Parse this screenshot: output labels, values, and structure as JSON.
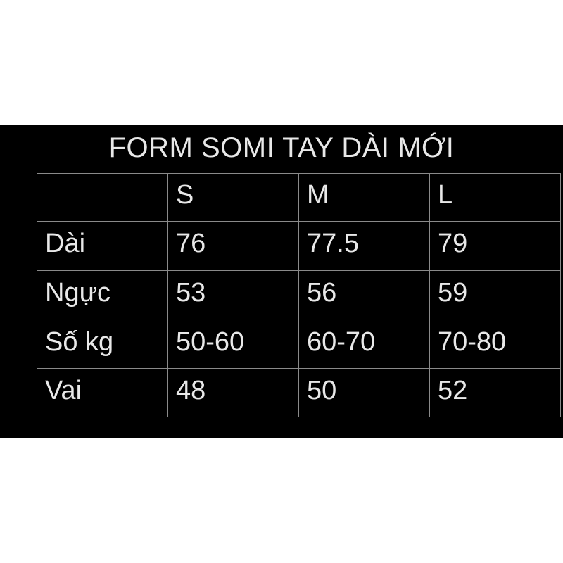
{
  "panel": {
    "background_color": "#000000",
    "text_color": "#e8e8e8",
    "border_color": "#8a8a8a",
    "canvas_color": "#ffffff"
  },
  "chart_data": {
    "type": "table",
    "title": "FORM SOMI TAY DÀI MỚI",
    "columns": [
      "",
      "S",
      "M",
      "L"
    ],
    "rows": [
      {
        "label": "Dài",
        "values": [
          "76",
          "77.5",
          "79"
        ]
      },
      {
        "label": "Ngực",
        "values": [
          "53",
          "56",
          "59"
        ]
      },
      {
        "label": "Số kg",
        "values": [
          "50-60",
          "60-70",
          "70-80"
        ]
      },
      {
        "label": "Vai",
        "values": [
          "48",
          "50",
          "52"
        ]
      }
    ],
    "layout": {
      "grid": "full-borders",
      "header_position": "top-row",
      "note": "size chart table on black band over white canvas"
    }
  }
}
